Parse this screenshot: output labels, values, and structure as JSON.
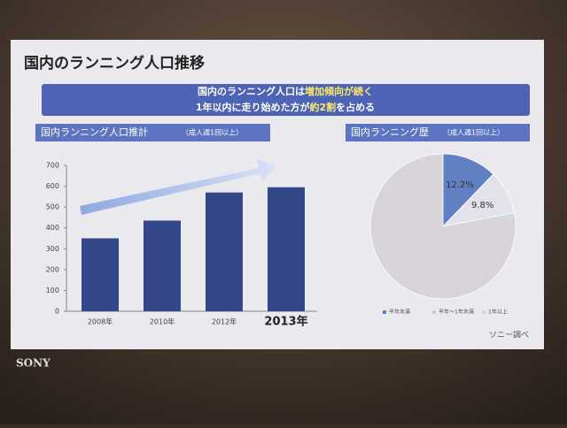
{
  "slide": {
    "title": "国内のランニング人口推移",
    "banner": [
      [
        "国内のランニング人口は",
        "増加傾向が続く"
      ],
      [
        "1年以内に走り始めた方が",
        "約2割",
        "を占める"
      ]
    ],
    "source": "ソニー調べ",
    "brand": "SONY"
  },
  "chart_data": [
    {
      "type": "bar",
      "title": "国内ランニング人口推計",
      "subtitle": "（成人週1回以上）",
      "categories": [
        "2008年",
        "2010年",
        "2012年",
        "2013年"
      ],
      "values": [
        350,
        435,
        570,
        595
      ],
      "color": "#34478a",
      "ylim": [
        0,
        700
      ],
      "yticks": [
        0,
        100,
        200,
        300,
        400,
        500,
        600,
        700
      ]
    },
    {
      "type": "pie",
      "title": "国内ランニング歴",
      "subtitle": "（成人週1回以上）",
      "categories": [
        "半年未満",
        "半年～1年未満",
        "1年以上"
      ],
      "values": [
        12.2,
        9.8,
        78
      ],
      "value_labels": [
        "12.2%",
        "9.8%",
        null
      ],
      "colors": [
        "#6180c4",
        "#e1e2ea",
        "#d8d4da"
      ]
    }
  ]
}
